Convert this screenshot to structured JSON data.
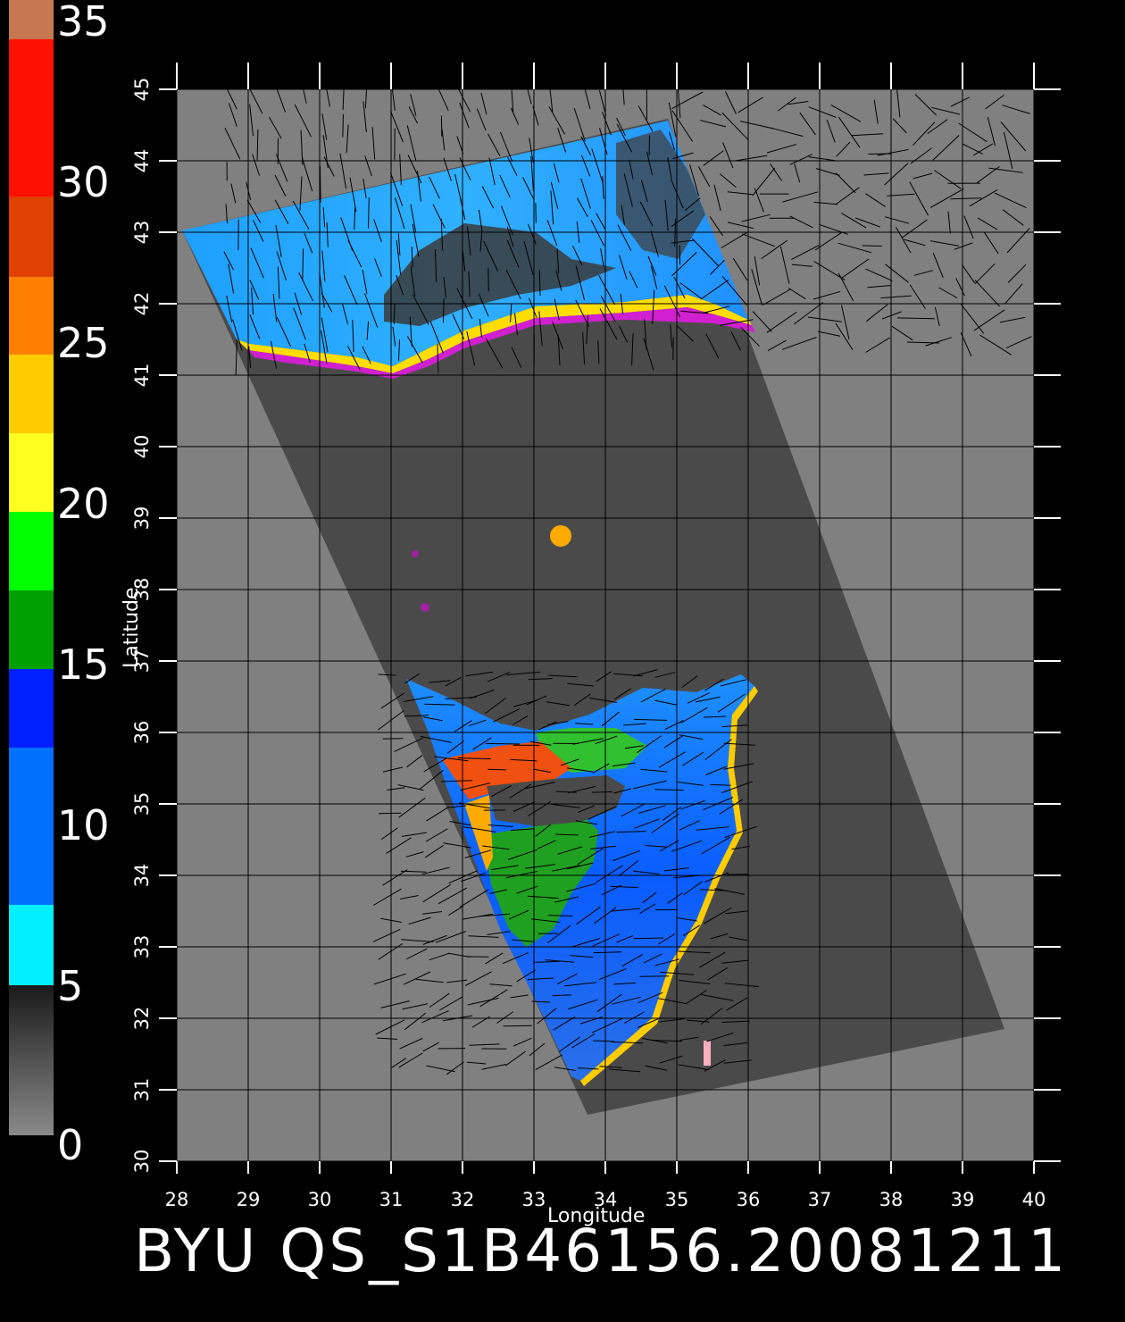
{
  "colorbar": {
    "labels": [
      "35",
      "30",
      "25",
      "20",
      "15",
      "10",
      "5",
      "0"
    ],
    "colors": {
      "top": "#c87850",
      "red": "#ff1000",
      "orange_red": "#e04000",
      "orange": "#ff8000",
      "yellow": "#ffcc00",
      "light_yellow": "#ffff20",
      "green": "#00ff00",
      "dark_green": "#00a000",
      "blue": "#0020ff",
      "mid_blue": "#0070ff",
      "cyan": "#00f0ff",
      "dark_gray": "#303030",
      "mid_gray": "#606060",
      "light_gray": "#888888"
    }
  },
  "map": {
    "x_label": "Longitude",
    "y_label": "Latitude",
    "longitudes": [
      "28",
      "29",
      "30",
      "31",
      "32",
      "33",
      "34",
      "35",
      "36",
      "37",
      "38",
      "39",
      "40"
    ],
    "latitudes": [
      "30",
      "31",
      "32",
      "33",
      "34",
      "35",
      "36",
      "37",
      "38",
      "39",
      "40",
      "41",
      "42",
      "43",
      "44",
      "45"
    ],
    "lon_range": [
      28,
      40
    ],
    "lat_range": [
      30,
      45
    ],
    "land_color": "#808080",
    "swath_color": "#4a4a4a",
    "grid_color": "#000000"
  },
  "footer": {
    "title": "BYU  QS_S1B46156.20081211"
  }
}
